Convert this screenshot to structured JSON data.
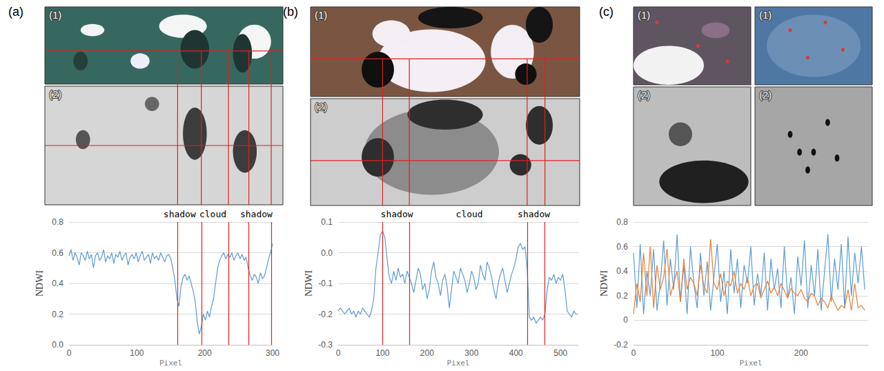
{
  "chart_data": [
    {
      "panel": "(a)",
      "image_labels": [
        "(1)",
        "(2)"
      ],
      "type": "line",
      "x_label": "Pixel",
      "y_label": "NDWI",
      "xlim": [
        0,
        300
      ],
      "xticks": [
        0,
        100,
        200,
        300
      ],
      "ylim": [
        0,
        0.8
      ],
      "yticks": [
        {
          "value": 0,
          "label": "0.0"
        },
        0.2,
        0.4,
        0.6,
        0.8
      ],
      "grid": true,
      "boundaries": [
        160,
        195,
        235,
        265,
        298
      ],
      "annotations": [
        {
          "text": "shadow",
          "x": 163
        },
        {
          "text": "cloud",
          "x": 212
        },
        {
          "text": "shadow",
          "x": 276
        }
      ],
      "x": [
        0,
        3,
        6,
        9,
        12,
        15,
        18,
        21,
        24,
        27,
        30,
        33,
        36,
        39,
        42,
        45,
        48,
        51,
        54,
        57,
        60,
        63,
        66,
        69,
        72,
        75,
        78,
        81,
        84,
        87,
        90,
        93,
        96,
        99,
        102,
        105,
        108,
        111,
        114,
        117,
        120,
        123,
        126,
        129,
        132,
        135,
        138,
        141,
        144,
        147,
        150,
        153,
        156,
        159,
        162,
        165,
        168,
        171,
        174,
        177,
        180,
        183,
        186,
        189,
        192,
        195,
        198,
        201,
        204,
        207,
        210,
        213,
        216,
        219,
        222,
        225,
        228,
        231,
        234,
        237,
        240,
        243,
        246,
        249,
        252,
        255,
        258,
        261,
        264,
        267,
        270,
        273,
        276,
        279,
        282,
        285,
        288,
        291,
        294,
        297,
        300
      ],
      "series": [
        {
          "color": "#5b9bd5",
          "values": [
            0.58,
            0.62,
            0.55,
            0.6,
            0.57,
            0.52,
            0.6,
            0.58,
            0.55,
            0.61,
            0.56,
            0.59,
            0.5,
            0.58,
            0.6,
            0.55,
            0.57,
            0.62,
            0.54,
            0.58,
            0.56,
            0.6,
            0.53,
            0.59,
            0.57,
            0.61,
            0.55,
            0.58,
            0.6,
            0.52,
            0.57,
            0.59,
            0.56,
            0.6,
            0.54,
            0.58,
            0.61,
            0.55,
            0.57,
            0.59,
            0.53,
            0.6,
            0.56,
            0.58,
            0.55,
            0.6,
            0.57,
            0.54,
            0.58,
            0.59,
            0.56,
            0.5,
            0.42,
            0.3,
            0.25,
            0.38,
            0.44,
            0.46,
            0.42,
            0.45,
            0.4,
            0.35,
            0.28,
            0.15,
            0.07,
            0.12,
            0.2,
            0.16,
            0.22,
            0.18,
            0.25,
            0.3,
            0.4,
            0.5,
            0.55,
            0.58,
            0.6,
            0.56,
            0.59,
            0.57,
            0.6,
            0.55,
            0.58,
            0.6,
            0.56,
            0.59,
            0.55,
            0.57,
            0.5,
            0.45,
            0.42,
            0.46,
            0.44,
            0.4,
            0.47,
            0.43,
            0.45,
            0.5,
            0.56,
            0.6,
            0.66
          ]
        }
      ]
    },
    {
      "panel": "(b)",
      "image_labels": [
        "(1)",
        "(2)"
      ],
      "type": "line",
      "x_label": "Pixel",
      "y_label": "NDWI",
      "xlim": [
        0,
        540
      ],
      "xticks": [
        0,
        100,
        200,
        300,
        400,
        500
      ],
      "ylim": [
        -0.3,
        0.1
      ],
      "yticks": [
        -0.3,
        -0.2,
        -0.1,
        {
          "value": 0,
          "label": "0.0"
        },
        0.1
      ],
      "grid": true,
      "boundaries": [
        100,
        160,
        425,
        465
      ],
      "annotations": [
        {
          "text": "shadow",
          "x": 132
        },
        {
          "text": "cloud",
          "x": 295
        },
        {
          "text": "shadow",
          "x": 440
        }
      ],
      "x": [
        0,
        5,
        10,
        15,
        20,
        25,
        30,
        35,
        40,
        45,
        50,
        55,
        60,
        65,
        70,
        75,
        80,
        85,
        90,
        95,
        100,
        105,
        110,
        115,
        120,
        125,
        130,
        135,
        140,
        145,
        150,
        155,
        160,
        165,
        170,
        175,
        180,
        185,
        190,
        195,
        200,
        205,
        210,
        215,
        220,
        225,
        230,
        235,
        240,
        245,
        250,
        255,
        260,
        265,
        270,
        275,
        280,
        285,
        290,
        295,
        300,
        305,
        310,
        315,
        320,
        325,
        330,
        335,
        340,
        345,
        350,
        355,
        360,
        365,
        370,
        375,
        380,
        385,
        390,
        395,
        400,
        405,
        410,
        415,
        420,
        425,
        430,
        435,
        440,
        445,
        450,
        455,
        460,
        465,
        470,
        475,
        480,
        485,
        490,
        495,
        500,
        505,
        510,
        515,
        520,
        525,
        530,
        535,
        540
      ],
      "series": [
        {
          "color": "#5b9bd5",
          "values": [
            -0.19,
            -0.18,
            -0.19,
            -0.2,
            -0.19,
            -0.18,
            -0.2,
            -0.19,
            -0.21,
            -0.19,
            -0.2,
            -0.18,
            -0.19,
            -0.2,
            -0.21,
            -0.19,
            -0.15,
            -0.05,
            0.0,
            0.06,
            0.07,
            0.05,
            -0.02,
            -0.08,
            -0.1,
            -0.06,
            -0.09,
            -0.05,
            -0.08,
            -0.07,
            -0.1,
            -0.06,
            -0.08,
            -0.1,
            -0.13,
            -0.09,
            -0.05,
            -0.07,
            -0.12,
            -0.1,
            -0.15,
            -0.12,
            -0.06,
            -0.03,
            -0.08,
            -0.1,
            -0.14,
            -0.09,
            -0.07,
            -0.11,
            -0.18,
            -0.12,
            -0.06,
            -0.08,
            -0.1,
            -0.05,
            -0.07,
            -0.09,
            -0.13,
            -0.1,
            -0.06,
            -0.08,
            -0.12,
            -0.1,
            -0.04,
            -0.07,
            -0.09,
            -0.03,
            -0.05,
            -0.08,
            -0.12,
            -0.15,
            -0.1,
            -0.07,
            -0.05,
            -0.09,
            -0.13,
            -0.1,
            -0.07,
            -0.05,
            -0.02,
            0.02,
            0.03,
            0.01,
            0.02,
            -0.05,
            -0.21,
            -0.22,
            -0.21,
            -0.23,
            -0.22,
            -0.21,
            -0.22,
            -0.2,
            -0.12,
            -0.08,
            -0.09,
            -0.07,
            -0.1,
            -0.08,
            -0.09,
            -0.07,
            -0.12,
            -0.19,
            -0.2,
            -0.21,
            -0.19,
            -0.2,
            -0.2
          ]
        }
      ]
    },
    {
      "panel": "(c)",
      "image_labels": [
        "(1)",
        "(1)",
        "(2)",
        "(2)"
      ],
      "type": "line",
      "x_label": "Pixel",
      "y_label": "NDWI",
      "xlim": [
        0,
        280
      ],
      "xticks": [
        0,
        100,
        200
      ],
      "ylim": [
        -0.2,
        0.8
      ],
      "yticks": [
        -0.2,
        0,
        0.2,
        0.4,
        0.6,
        0.8
      ],
      "grid": true,
      "x": [
        0,
        4,
        8,
        12,
        16,
        20,
        24,
        28,
        32,
        36,
        40,
        44,
        48,
        52,
        56,
        60,
        64,
        68,
        72,
        76,
        80,
        84,
        88,
        92,
        96,
        100,
        104,
        108,
        112,
        116,
        120,
        124,
        128,
        132,
        136,
        140,
        144,
        148,
        152,
        156,
        160,
        164,
        168,
        172,
        176,
        180,
        184,
        188,
        192,
        196,
        200,
        204,
        208,
        212,
        216,
        220,
        224,
        228,
        232,
        236,
        240,
        244,
        248,
        252,
        256,
        260,
        264,
        268,
        272,
        276
      ],
      "series": [
        {
          "color": "#5b9bd5",
          "values": [
            0.55,
            0.1,
            0.62,
            0.05,
            0.4,
            0.2,
            0.58,
            0.08,
            0.3,
            0.65,
            0.12,
            0.5,
            0.25,
            0.7,
            0.15,
            0.45,
            0.05,
            0.6,
            0.3,
            0.1,
            0.55,
            0.2,
            0.48,
            0.08,
            0.35,
            0.62,
            0.15,
            0.4,
            0.05,
            0.58,
            0.22,
            0.5,
            0.1,
            0.45,
            0.3,
            0.6,
            0.12,
            0.38,
            0.2,
            0.55,
            0.08,
            0.5,
            0.25,
            0.42,
            0.1,
            0.6,
            0.18,
            0.35,
            0.05,
            0.52,
            0.28,
            0.65,
            0.1,
            0.45,
            0.2,
            0.58,
            0.08,
            0.4,
            0.7,
            0.15,
            0.5,
            0.25,
            0.62,
            0.1,
            0.68,
            0.2,
            0.55,
            0.3,
            0.6,
            0.25
          ]
        },
        {
          "color": "#ed7d31",
          "values": [
            0.05,
            0.3,
            0.15,
            0.55,
            0.2,
            0.6,
            0.1,
            0.45,
            0.25,
            0.35,
            0.58,
            0.2,
            0.3,
            0.4,
            0.15,
            0.5,
            0.25,
            0.35,
            0.3,
            0.2,
            0.45,
            0.28,
            0.22,
            0.66,
            0.3,
            0.25,
            0.38,
            0.2,
            0.32,
            0.28,
            0.4,
            0.22,
            0.3,
            0.25,
            0.35,
            0.2,
            0.28,
            0.3,
            0.18,
            0.25,
            0.32,
            0.22,
            0.27,
            0.2,
            0.3,
            0.24,
            0.18,
            0.26,
            0.22,
            0.2,
            0.25,
            0.18,
            0.15,
            0.22,
            0.2,
            0.12,
            0.18,
            0.15,
            0.1,
            0.2,
            0.14,
            0.08,
            0.12,
            0.1,
            0.25,
            0.08,
            0.3,
            0.1,
            0.12,
            0.08
          ]
        }
      ]
    }
  ]
}
